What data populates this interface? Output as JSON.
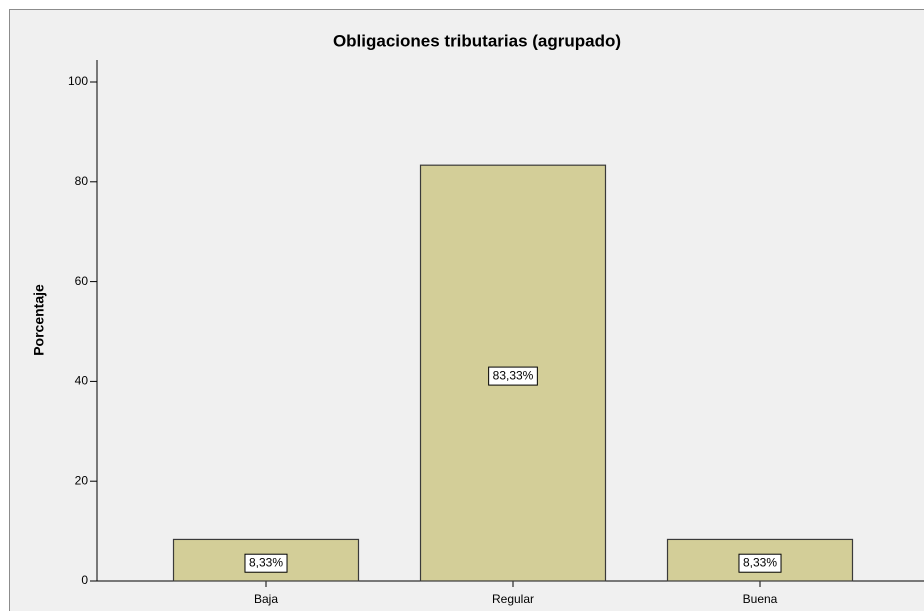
{
  "chart_data": {
    "type": "bar",
    "title": "Obligaciones tributarias (agrupado)",
    "y_label": "Porcentaje",
    "categories": [
      "Baja",
      "Regular",
      "Buena"
    ],
    "values": [
      8.33,
      83.33,
      8.33
    ],
    "value_labels": [
      "8,33%",
      "83,33%",
      "8,33%"
    ],
    "color": "#d3ce98",
    "ylim": [
      0,
      100
    ],
    "yticks": [
      0,
      20,
      40,
      60,
      80,
      100
    ],
    "grid": false
  }
}
